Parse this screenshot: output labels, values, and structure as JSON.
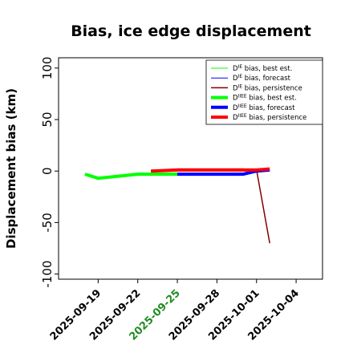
{
  "chart_data": {
    "type": "line",
    "title": "Bias, ice edge displacement",
    "ylabel": "Displacement bias (km)",
    "xlabel": "",
    "ylim": [
      -105,
      110
    ],
    "yticks": [
      -100,
      -50,
      0,
      50,
      100
    ],
    "xlim": [
      "2025-09-16",
      "2025-10-06"
    ],
    "xticks": [
      {
        "date": "2025-09-19",
        "label": "2025-09-19",
        "color": "#000000"
      },
      {
        "date": "2025-09-22",
        "label": "2025-09-22",
        "color": "#000000"
      },
      {
        "date": "2025-09-25",
        "label": "2025-09-25",
        "color": "#228B22"
      },
      {
        "date": "2025-09-28",
        "label": "2025-09-28",
        "color": "#000000"
      },
      {
        "date": "2025-10-01",
        "label": "2025-10-01",
        "color": "#000000"
      },
      {
        "date": "2025-10-04",
        "label": "2025-10-04",
        "color": "#000000"
      }
    ],
    "grid": false,
    "legend_position": "top-right",
    "series": [
      {
        "name": "D",
        "sup": "IE",
        "suffix": " bias, best est.",
        "color": "#00ff00",
        "width": 1,
        "x": [
          "2025-09-18",
          "2025-09-19",
          "2025-09-22",
          "2025-09-25"
        ],
        "values": [
          -3,
          -7,
          -3,
          -2
        ]
      },
      {
        "name": "D",
        "sup": "IE",
        "suffix": " bias, forecast",
        "color": "#0000ff",
        "width": 1,
        "x": [
          "2025-09-25",
          "2025-09-30",
          "2025-10-01",
          "2025-10-02"
        ],
        "values": [
          -3,
          -2,
          0,
          1
        ]
      },
      {
        "name": "D",
        "sup": "IE",
        "suffix": " bias, persistence",
        "color": "#800000",
        "width": 1.5,
        "x": [
          "2025-09-23",
          "2025-09-25",
          "2025-09-30",
          "2025-10-01",
          "2025-10-02"
        ],
        "values": [
          0,
          2,
          2,
          1,
          -70
        ]
      },
      {
        "name": "D",
        "sup": "IIEE",
        "suffix": " bias, best est.",
        "color": "#00ff00",
        "width": 4,
        "x": [
          "2025-09-18",
          "2025-09-19",
          "2025-09-22",
          "2025-09-25"
        ],
        "values": [
          -3,
          -7,
          -3,
          -3
        ]
      },
      {
        "name": "D",
        "sup": "IIEE",
        "suffix": " bias, forecast",
        "color": "#0000ff",
        "width": 4,
        "x": [
          "2025-09-25",
          "2025-09-30",
          "2025-10-01",
          "2025-10-02"
        ],
        "values": [
          -3,
          -3,
          0,
          1
        ]
      },
      {
        "name": "D",
        "sup": "IIEE",
        "suffix": " bias, persistence",
        "color": "#ff0000",
        "width": 4,
        "x": [
          "2025-09-23",
          "2025-09-25",
          "2025-09-30",
          "2025-10-01",
          "2025-10-02"
        ],
        "values": [
          0,
          1,
          1,
          1,
          2
        ]
      }
    ]
  }
}
